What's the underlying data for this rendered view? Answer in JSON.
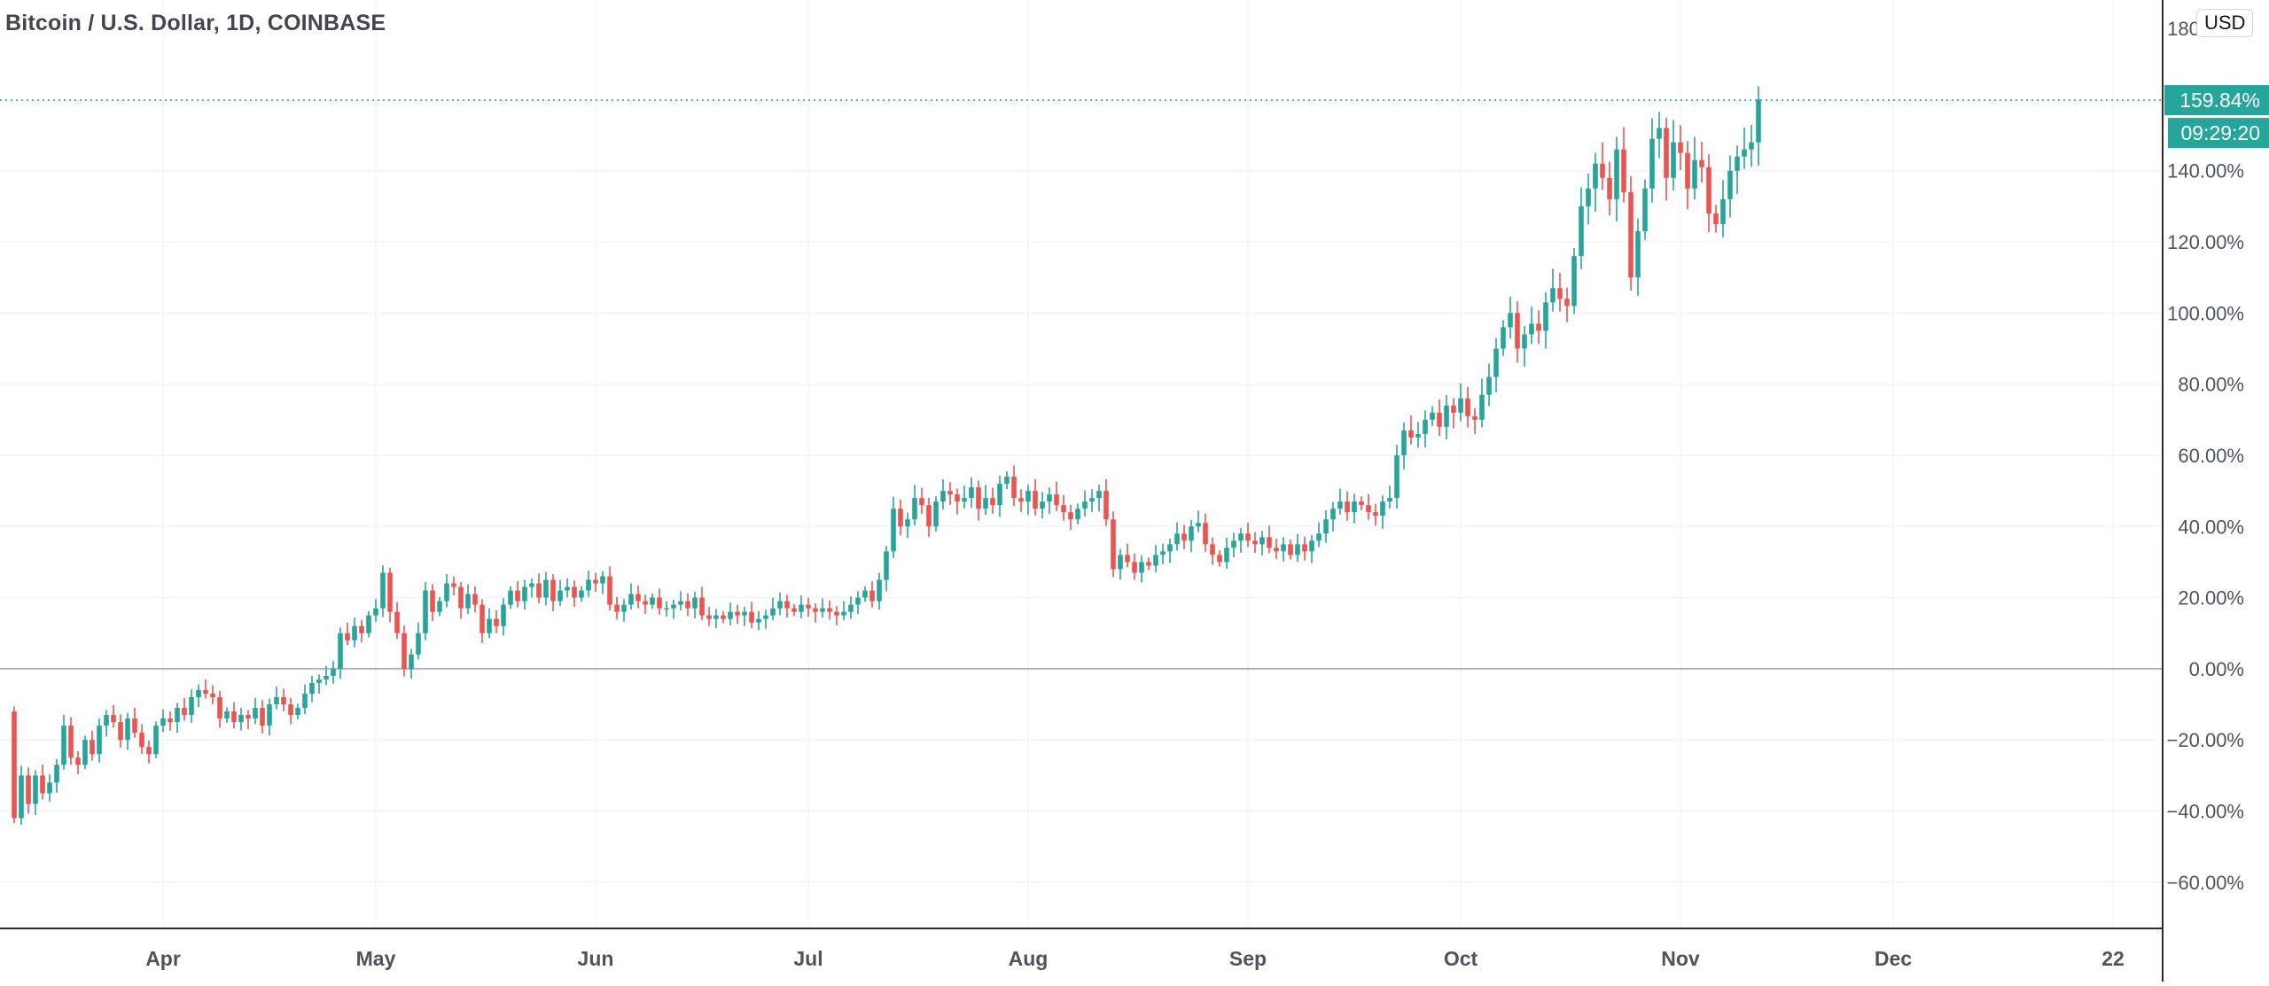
{
  "header": {
    "title": "Bitcoin / U.S. Dollar, 1D, COINBASE",
    "currency": "USD"
  },
  "price_tag": {
    "value_label": "159.84%",
    "countdown_label": "09:29:20"
  },
  "colors": {
    "up": "#26a69a",
    "down": "#ef5350",
    "grid": "#f0f3fa",
    "axis_text": "#50535e",
    "baseline": "#b2b5be"
  },
  "chart_data": {
    "type": "candlestick",
    "title": "Bitcoin / U.S. Dollar, 1D, COINBASE",
    "scale": "percent",
    "ylim": [
      -73,
      188
    ],
    "y_ticks": [
      -60,
      -40,
      -20,
      0,
      20,
      40,
      60,
      80,
      100,
      120,
      140
    ],
    "y_tick_labels": [
      "−60.00%",
      "−40.00%",
      "−20.00%",
      "0.00%",
      "20.00%",
      "40.00%",
      "60.00%",
      "80.00%",
      "100.00%",
      "120.00%",
      "140.00%"
    ],
    "top_partial_label": "180.00%",
    "x_range_days": [
      -2,
      303
    ],
    "x_tick_days": [
      21,
      51,
      82,
      112,
      143,
      174,
      204,
      235,
      265,
      296
    ],
    "x_tick_labels": [
      "Apr",
      "May",
      "Jun",
      "Jul",
      "Aug",
      "Sep",
      "Oct",
      "Nov",
      "Dec",
      "22"
    ],
    "baseline": 0,
    "last_value": 159.84,
    "grid": true,
    "closes": [
      -42,
      -30,
      -38,
      -30,
      -35,
      -32,
      -27,
      -16,
      -25,
      -27,
      -20,
      -24,
      -16,
      -13,
      -15,
      -20,
      -14,
      -18,
      -22,
      -24,
      -16,
      -14,
      -15,
      -11,
      -13,
      -8,
      -6,
      -7,
      -8,
      -14,
      -12,
      -15,
      -13,
      -14,
      -11,
      -16,
      -10,
      -8,
      -10,
      -13,
      -11,
      -7,
      -4,
      -3,
      -2,
      0,
      10,
      8,
      12,
      10,
      15,
      17,
      27,
      16,
      10,
      0,
      4,
      10,
      22,
      16,
      19,
      24,
      23,
      17,
      21,
      18,
      10,
      14,
      12,
      18,
      22,
      19,
      23,
      24,
      20,
      25,
      19,
      22,
      23,
      20,
      22,
      25,
      24,
      26,
      18,
      16,
      18,
      21,
      19,
      18,
      20,
      17,
      17,
      18,
      19,
      17,
      20,
      15,
      14,
      15,
      14,
      16,
      15,
      16,
      13,
      14,
      15,
      17,
      19,
      17,
      16,
      18,
      17,
      16,
      17,
      16,
      15,
      16,
      18,
      20,
      22,
      19,
      25,
      33,
      45,
      40,
      42,
      48,
      46,
      40,
      47,
      50,
      49,
      47,
      48,
      51,
      45,
      48,
      46,
      52,
      54,
      48,
      47,
      50,
      45,
      47,
      49,
      46,
      44,
      42,
      45,
      47,
      48,
      50,
      42,
      28,
      32,
      30,
      27,
      30,
      29,
      32,
      33,
      35,
      38,
      36,
      40,
      41,
      35,
      32,
      30,
      34,
      36,
      38,
      36,
      35,
      37,
      34,
      33,
      35,
      32,
      35,
      33,
      36,
      38,
      42,
      45,
      47,
      44,
      47,
      46,
      44,
      43,
      47,
      48,
      60,
      67,
      65,
      66,
      70,
      72,
      68,
      74,
      72,
      76,
      71,
      70,
      77,
      82,
      90,
      96,
      100,
      90,
      94,
      97,
      95,
      103,
      107,
      104,
      102,
      116,
      130,
      135,
      142,
      138,
      132,
      146,
      134,
      110,
      123,
      135,
      149,
      152,
      138,
      148,
      145,
      135,
      143,
      141,
      128,
      125,
      132,
      140,
      144,
      146,
      148,
      160
    ],
    "time_label": "09:29:20"
  }
}
